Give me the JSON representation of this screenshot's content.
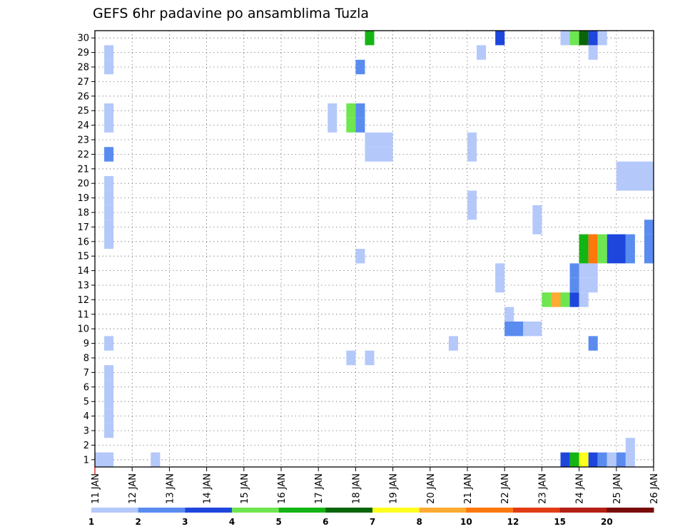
{
  "chart_data": {
    "type": "heatmap",
    "title": "GEFS 6hr padavine po ansamblima Tuzla",
    "xlabel": "",
    "ylabel": "",
    "x_ticks": [
      "11 JAN",
      "12 JAN",
      "13 JAN",
      "14 JAN",
      "15 JAN",
      "16 JAN",
      "17 JAN",
      "18 JAN",
      "19 JAN",
      "20 JAN",
      "21 JAN",
      "22 JAN",
      "23 JAN",
      "24 JAN",
      "25 JAN",
      "26 JAN"
    ],
    "y_ticks": [
      "1",
      "2",
      "3",
      "4",
      "5",
      "6",
      "7",
      "8",
      "9",
      "10",
      "11",
      "12",
      "13",
      "14",
      "15",
      "16",
      "17",
      "18",
      "19",
      "20",
      "21",
      "22",
      "23",
      "24",
      "25",
      "26",
      "27",
      "28",
      "29",
      "30"
    ],
    "y_range": [
      0.5,
      30.5
    ],
    "x_range": [
      "11 JAN 00Z",
      "26 JAN 00Z"
    ],
    "grid": true,
    "colorbar": {
      "tick_labels": [
        "1",
        "2",
        "3",
        "4",
        "5",
        "6",
        "7",
        "8",
        "10",
        "12",
        "15",
        "20"
      ],
      "colors": [
        "#b4c8fa",
        "#5a8cf0",
        "#1e46dc",
        "#6ee650",
        "#14b414",
        "#0a640a",
        "#ffff1e",
        "#ffaa32",
        "#ff780a",
        "#e13c14",
        "#b41e14",
        "#780a0a"
      ]
    },
    "cells_note": "each cell: member (y), 6h step index from 11 JAN 00Z (t0..t1 exclusive), color class 1..11",
    "cells": [
      {
        "m": 1,
        "t0": 0,
        "t1": 1,
        "c": 1
      },
      {
        "m": 1,
        "t0": 1,
        "t1": 2,
        "c": 1
      },
      {
        "m": 1,
        "t0": 6,
        "t1": 7,
        "c": 1
      },
      {
        "m": 1,
        "t0": 50,
        "t1": 51,
        "c": 3
      },
      {
        "m": 1,
        "t0": 51,
        "t1": 52,
        "c": 5
      },
      {
        "m": 1,
        "t0": 52,
        "t1": 53,
        "c": 7
      },
      {
        "m": 1,
        "t0": 53,
        "t1": 54,
        "c": 3
      },
      {
        "m": 1,
        "t0": 54,
        "t1": 55,
        "c": 2
      },
      {
        "m": 1,
        "t0": 55,
        "t1": 56,
        "c": 1
      },
      {
        "m": 1,
        "t0": 56,
        "t1": 57,
        "c": 2
      },
      {
        "m": 1,
        "t0": 57,
        "t1": 58,
        "c": 1
      },
      {
        "m": 2,
        "t0": 57,
        "t1": 58,
        "c": 1
      },
      {
        "m": 3,
        "t0": 1,
        "t1": 2,
        "c": 1
      },
      {
        "m": 4,
        "t0": 1,
        "t1": 2,
        "c": 1
      },
      {
        "m": 5,
        "t0": 1,
        "t1": 2,
        "c": 1
      },
      {
        "m": 6,
        "t0": 1,
        "t1": 2,
        "c": 1
      },
      {
        "m": 7,
        "t0": 1,
        "t1": 2,
        "c": 1
      },
      {
        "m": 8,
        "t0": 27,
        "t1": 28,
        "c": 1
      },
      {
        "m": 8,
        "t0": 29,
        "t1": 30,
        "c": 1
      },
      {
        "m": 9,
        "t0": 1,
        "t1": 2,
        "c": 1
      },
      {
        "m": 9,
        "t0": 38,
        "t1": 39,
        "c": 1
      },
      {
        "m": 9,
        "t0": 53,
        "t1": 54,
        "c": 2
      },
      {
        "m": 10,
        "t0": 44,
        "t1": 46,
        "c": 2
      },
      {
        "m": 10,
        "t0": 46,
        "t1": 48,
        "c": 1
      },
      {
        "m": 11,
        "t0": 44,
        "t1": 45,
        "c": 1
      },
      {
        "m": 12,
        "t0": 48,
        "t1": 49,
        "c": 4
      },
      {
        "m": 12,
        "t0": 49,
        "t1": 50,
        "c": 8
      },
      {
        "m": 12,
        "t0": 50,
        "t1": 51,
        "c": 4
      },
      {
        "m": 12,
        "t0": 51,
        "t1": 52,
        "c": 3
      },
      {
        "m": 12,
        "t0": 52,
        "t1": 53,
        "c": 1
      },
      {
        "m": 13,
        "t0": 43,
        "t1": 44,
        "c": 1
      },
      {
        "m": 13,
        "t0": 51,
        "t1": 52,
        "c": 2
      },
      {
        "m": 13,
        "t0": 52,
        "t1": 54,
        "c": 1
      },
      {
        "m": 14,
        "t0": 43,
        "t1": 44,
        "c": 1
      },
      {
        "m": 14,
        "t0": 51,
        "t1": 52,
        "c": 2
      },
      {
        "m": 14,
        "t0": 52,
        "t1": 54,
        "c": 1
      },
      {
        "m": 15,
        "t0": 28,
        "t1": 29,
        "c": 1
      },
      {
        "m": 15,
        "t0": 52,
        "t1": 53,
        "c": 5
      },
      {
        "m": 15,
        "t0": 53,
        "t1": 54,
        "c": 9
      },
      {
        "m": 15,
        "t0": 54,
        "t1": 55,
        "c": 4
      },
      {
        "m": 15,
        "t0": 55,
        "t1": 57,
        "c": 3
      },
      {
        "m": 15,
        "t0": 57,
        "t1": 58,
        "c": 2
      },
      {
        "m": 15,
        "t0": 59,
        "t1": 60,
        "c": 2
      },
      {
        "m": 16,
        "t0": 1,
        "t1": 2,
        "c": 1
      },
      {
        "m": 16,
        "t0": 52,
        "t1": 53,
        "c": 5
      },
      {
        "m": 16,
        "t0": 53,
        "t1": 54,
        "c": 9
      },
      {
        "m": 16,
        "t0": 54,
        "t1": 55,
        "c": 4
      },
      {
        "m": 16,
        "t0": 55,
        "t1": 57,
        "c": 3
      },
      {
        "m": 16,
        "t0": 57,
        "t1": 58,
        "c": 2
      },
      {
        "m": 16,
        "t0": 59,
        "t1": 60,
        "c": 2
      },
      {
        "m": 17,
        "t0": 1,
        "t1": 2,
        "c": 1
      },
      {
        "m": 17,
        "t0": 47,
        "t1": 48,
        "c": 1
      },
      {
        "m": 17,
        "t0": 59,
        "t1": 60,
        "c": 2
      },
      {
        "m": 18,
        "t0": 1,
        "t1": 2,
        "c": 1
      },
      {
        "m": 18,
        "t0": 40,
        "t1": 41,
        "c": 1
      },
      {
        "m": 18,
        "t0": 47,
        "t1": 48,
        "c": 1
      },
      {
        "m": 19,
        "t0": 1,
        "t1": 2,
        "c": 1
      },
      {
        "m": 19,
        "t0": 40,
        "t1": 41,
        "c": 1
      },
      {
        "m": 20,
        "t0": 1,
        "t1": 2,
        "c": 1
      },
      {
        "m": 20,
        "t0": 56,
        "t1": 60,
        "c": 1
      },
      {
        "m": 21,
        "t0": 56,
        "t1": 60,
        "c": 1
      },
      {
        "m": 22,
        "t0": 1,
        "t1": 2,
        "c": 2
      },
      {
        "m": 22,
        "t0": 29,
        "t1": 32,
        "c": 1
      },
      {
        "m": 22,
        "t0": 40,
        "t1": 41,
        "c": 1
      },
      {
        "m": 23,
        "t0": 29,
        "t1": 32,
        "c": 1
      },
      {
        "m": 23,
        "t0": 40,
        "t1": 41,
        "c": 1
      },
      {
        "m": 24,
        "t0": 1,
        "t1": 2,
        "c": 1
      },
      {
        "m": 24,
        "t0": 25,
        "t1": 26,
        "c": 1
      },
      {
        "m": 24,
        "t0": 27,
        "t1": 28,
        "c": 4
      },
      {
        "m": 24,
        "t0": 28,
        "t1": 29,
        "c": 2
      },
      {
        "m": 25,
        "t0": 1,
        "t1": 2,
        "c": 1
      },
      {
        "m": 25,
        "t0": 25,
        "t1": 26,
        "c": 1
      },
      {
        "m": 25,
        "t0": 27,
        "t1": 28,
        "c": 4
      },
      {
        "m": 25,
        "t0": 28,
        "t1": 29,
        "c": 2
      },
      {
        "m": 28,
        "t0": 1,
        "t1": 2,
        "c": 1
      },
      {
        "m": 28,
        "t0": 28,
        "t1": 29,
        "c": 2
      },
      {
        "m": 29,
        "t0": 1,
        "t1": 2,
        "c": 1
      },
      {
        "m": 29,
        "t0": 41,
        "t1": 42,
        "c": 1
      },
      {
        "m": 29,
        "t0": 53,
        "t1": 54,
        "c": 1
      },
      {
        "m": 30,
        "t0": 29,
        "t1": 30,
        "c": 5
      },
      {
        "m": 30,
        "t0": 43,
        "t1": 44,
        "c": 3
      },
      {
        "m": 30,
        "t0": 50,
        "t1": 51,
        "c": 1
      },
      {
        "m": 30,
        "t0": 51,
        "t1": 52,
        "c": 4
      },
      {
        "m": 30,
        "t0": 52,
        "t1": 53,
        "c": 6
      },
      {
        "m": 30,
        "t0": 53,
        "t1": 54,
        "c": 3
      },
      {
        "m": 30,
        "t0": 54,
        "t1": 55,
        "c": 1
      }
    ]
  }
}
